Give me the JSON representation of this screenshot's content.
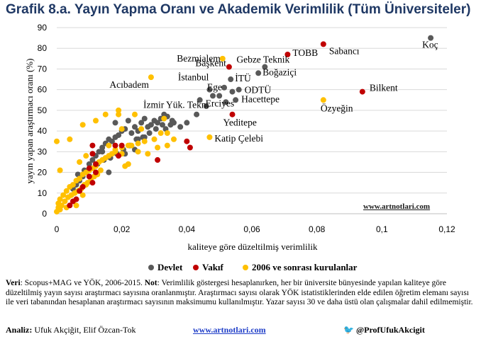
{
  "title": "Grafik 8.a. Yayın Yapma Oranı ve Akademik Verimlilik (Tüm Üniversiteler)",
  "website_label": "www.artnotlari.com",
  "notes": {
    "veri_label": "Veri",
    "veri_text": ": Scopus+MAG ve YÖK, 2006-2015.",
    "not_label": "Not",
    "not_text": ": Verimlilik göstergesi hesaplanırken, her bir üniversite bünyesinde yapılan kaliteye göre düzeltilmiş yayın sayısı araştırmacı sayısına oranlanmıştır. Araştırmacı sayısı olarak YÖK istatistiklerinden elde edilen öğretim elemanı sayısı ile veri tabanından hesaplanan araştırmacı sayısının maksimumu kullanılmıştır. Yazar sayısı 30 ve daha üstü olan çalışmalar dahil edilmemiştir."
  },
  "footer": {
    "analysis_label": "Analiz:",
    "analysis_names": "Ufuk Akçiğit, Elif Özcan-Tok",
    "site": "www.artnotlari.com",
    "twitter": "@ProfUfukAkcigit"
  },
  "colors": {
    "devlet": "#595959",
    "vakif": "#c00000",
    "yeni": "#ffc000",
    "title": "#1f3864"
  },
  "chart_data": {
    "type": "scatter",
    "xlabel": "kaliteye göre düzeltilmiş verimlilik",
    "ylabel": "yayın yapan araştırmacı oranı (%)",
    "xlim": [
      0,
      0.12
    ],
    "ylim": [
      0,
      90
    ],
    "xticks": [
      "0",
      "0,02",
      "0,04",
      "0,06",
      "0,08",
      "0,1",
      "0,12"
    ],
    "yticks": [
      "0",
      "10",
      "20",
      "30",
      "40",
      "50",
      "60",
      "70",
      "80",
      "90"
    ],
    "legend": [
      {
        "key": "devlet",
        "label": "Devlet"
      },
      {
        "key": "vakif",
        "label": "Vakıf"
      },
      {
        "key": "yeni",
        "label": "2006 ve sonrası kurulanlar"
      }
    ],
    "series": [
      {
        "name": "Devlet",
        "key": "devlet",
        "points": [
          [
            0.115,
            85
          ],
          [
            0.064,
            71
          ],
          [
            0.062,
            68
          ],
          [
            0.0535,
            65
          ],
          [
            0.0515,
            61
          ],
          [
            0.05,
            57
          ],
          [
            0.054,
            59
          ],
          [
            0.056,
            60
          ],
          [
            0.055,
            55
          ],
          [
            0.047,
            60
          ],
          [
            0.048,
            57
          ],
          [
            0.044,
            55
          ],
          [
            0.046,
            52
          ],
          [
            0.052,
            54
          ],
          [
            0.043,
            48
          ],
          [
            0.04,
            44
          ],
          [
            0.038,
            42
          ],
          [
            0.036,
            44
          ],
          [
            0.035,
            43
          ],
          [
            0.034,
            47
          ],
          [
            0.033,
            48
          ],
          [
            0.032,
            46
          ],
          [
            0.031,
            44
          ],
          [
            0.03,
            45
          ],
          [
            0.029,
            43
          ],
          [
            0.028,
            42
          ],
          [
            0.027,
            46
          ],
          [
            0.026,
            44
          ],
          [
            0.025,
            40
          ],
          [
            0.024,
            42
          ],
          [
            0.023,
            39
          ],
          [
            0.022,
            45
          ],
          [
            0.021,
            41
          ],
          [
            0.02,
            40
          ],
          [
            0.019,
            38
          ],
          [
            0.018,
            37
          ],
          [
            0.017,
            35
          ],
          [
            0.016,
            36
          ],
          [
            0.015,
            34
          ],
          [
            0.014,
            32
          ],
          [
            0.013,
            30
          ],
          [
            0.012,
            28
          ],
          [
            0.011,
            26
          ],
          [
            0.01,
            24
          ],
          [
            0.009,
            20
          ],
          [
            0.008,
            18
          ],
          [
            0.007,
            16
          ],
          [
            0.006,
            14
          ],
          [
            0.005,
            12
          ],
          [
            0.0335,
            41
          ],
          [
            0.0355,
            45
          ],
          [
            0.0325,
            43
          ],
          [
            0.0305,
            41
          ],
          [
            0.0285,
            39
          ],
          [
            0.0265,
            37
          ],
          [
            0.0245,
            36
          ],
          [
            0.0225,
            33
          ],
          [
            0.0205,
            31
          ],
          [
            0.0185,
            29
          ],
          [
            0.0165,
            27
          ],
          [
            0.0145,
            26
          ],
          [
            0.0125,
            24
          ],
          [
            0.0105,
            22
          ],
          [
            0.0085,
            21
          ],
          [
            0.0065,
            19
          ],
          [
            0.024,
            31
          ],
          [
            0.021,
            29
          ],
          [
            0.016,
            20
          ],
          [
            0.014,
            30
          ],
          [
            0.018,
            44
          ],
          [
            0.025,
            36
          ],
          [
            0.027,
            37
          ]
        ]
      },
      {
        "name": "Vakıf",
        "key": "vakif",
        "points": [
          [
            0.082,
            82
          ],
          [
            0.071,
            77
          ],
          [
            0.053,
            71
          ],
          [
            0.094,
            59
          ],
          [
            0.054,
            48
          ],
          [
            0.04,
            35
          ],
          [
            0.041,
            32
          ],
          [
            0.031,
            26
          ],
          [
            0.018,
            33
          ],
          [
            0.02,
            33
          ],
          [
            0.011,
            33
          ],
          [
            0.011,
            29
          ],
          [
            0.012,
            24
          ],
          [
            0.01,
            22
          ],
          [
            0.012,
            20
          ],
          [
            0.01,
            18
          ],
          [
            0.011,
            15
          ],
          [
            0.008,
            13
          ],
          [
            0.007,
            11
          ],
          [
            0.006,
            7
          ],
          [
            0.005,
            6
          ],
          [
            0.004,
            4
          ],
          [
            0.019,
            28
          ]
        ]
      },
      {
        "name": "2006 ve sonrası kurulanlar",
        "key": "yeni",
        "points": [
          [
            0.051,
            75
          ],
          [
            0.029,
            66
          ],
          [
            0.082,
            55
          ],
          [
            0.047,
            37
          ],
          [
            0.019,
            48
          ],
          [
            0.024,
            48
          ],
          [
            0.026,
            41
          ],
          [
            0.008,
            43
          ],
          [
            0.012,
            45
          ],
          [
            0.019,
            50
          ],
          [
            0.015,
            48
          ],
          [
            0.033,
            46
          ],
          [
            0.034,
            33
          ],
          [
            0.031,
            32
          ],
          [
            0.03,
            36
          ],
          [
            0.027,
            35
          ],
          [
            0.025,
            34
          ],
          [
            0.023,
            33
          ],
          [
            0.022,
            33
          ],
          [
            0.02,
            32
          ],
          [
            0.018,
            31
          ],
          [
            0.017,
            29
          ],
          [
            0.016,
            28
          ],
          [
            0.015,
            27
          ],
          [
            0.014,
            26
          ],
          [
            0.013,
            25
          ],
          [
            0.012,
            23
          ],
          [
            0.011,
            22
          ],
          [
            0.01,
            21
          ],
          [
            0.009,
            20
          ],
          [
            0.008,
            19
          ],
          [
            0.007,
            17
          ],
          [
            0.006,
            16
          ],
          [
            0.005,
            14
          ],
          [
            0.004,
            13
          ],
          [
            0.003,
            11
          ],
          [
            0.002,
            9
          ],
          [
            0.001,
            7
          ],
          [
            0.0005,
            3
          ],
          [
            0.0,
            35
          ],
          [
            0.001,
            21
          ],
          [
            0.004,
            36
          ],
          [
            0.0005,
            5
          ],
          [
            0.0015,
            4
          ],
          [
            0.0025,
            6
          ],
          [
            0.0035,
            8
          ],
          [
            0.0045,
            9
          ],
          [
            0.0055,
            10
          ],
          [
            0.0065,
            11
          ],
          [
            0.0075,
            12
          ],
          [
            0.0085,
            14
          ],
          [
            0.0095,
            15
          ],
          [
            0.0105,
            17
          ],
          [
            0.0115,
            18
          ],
          [
            0.0125,
            19
          ],
          [
            0.0135,
            21
          ],
          [
            0.02,
            29
          ],
          [
            0.021,
            23
          ],
          [
            0.022,
            24
          ],
          [
            0.018,
            30
          ],
          [
            0.016,
            33
          ],
          [
            0.02,
            41
          ],
          [
            0.034,
            39
          ],
          [
            0.036,
            36
          ],
          [
            0.032,
            39
          ],
          [
            0.025,
            30
          ],
          [
            0.028,
            29
          ],
          [
            0.009,
            28
          ],
          [
            0.007,
            25
          ],
          [
            0.009,
            14
          ],
          [
            0.006,
            4
          ],
          [
            0.003,
            3
          ],
          [
            0.0,
            1
          ],
          [
            0.001,
            2
          ],
          [
            0.008,
            9
          ]
        ]
      }
    ],
    "annotations": [
      {
        "text": "Koç",
        "x": 0.115,
        "y": 85,
        "ref": "devlet"
      },
      {
        "text": "Sabancı",
        "x": 0.082,
        "y": 82,
        "ref": "vakif"
      },
      {
        "text": "TOBB",
        "x": 0.071,
        "y": 77,
        "ref": "vakif"
      },
      {
        "text": "Bezmialem",
        "x": 0.051,
        "y": 75,
        "ref": "yeni"
      },
      {
        "text": "Gebze Teknik",
        "x": 0.064,
        "y": 71,
        "ref": "devlet"
      },
      {
        "text": "Başkent",
        "x": 0.053,
        "y": 71,
        "ref": "vakif"
      },
      {
        "text": "Boğaziçi",
        "x": 0.062,
        "y": 68,
        "ref": "devlet"
      },
      {
        "text": "Acıbadem",
        "x": 0.029,
        "y": 66,
        "ref": "yeni"
      },
      {
        "text": "İstanbul",
        "x": 0.047,
        "y": 60,
        "ref": "devlet"
      },
      {
        "text": "İTÜ",
        "x": 0.0535,
        "y": 65,
        "ref": "devlet"
      },
      {
        "text": "Ege",
        "x": 0.0515,
        "y": 61,
        "ref": "devlet"
      },
      {
        "text": "ODTÜ",
        "x": 0.056,
        "y": 60,
        "ref": "devlet"
      },
      {
        "text": "Bilkent",
        "x": 0.094,
        "y": 59,
        "ref": "vakif"
      },
      {
        "text": "Hacettepe",
        "x": 0.055,
        "y": 55,
        "ref": "devlet"
      },
      {
        "text": "İzmir Yük. Tekn.",
        "x": 0.048,
        "y": 57,
        "ref": "devlet"
      },
      {
        "text": "Erciyes",
        "x": 0.044,
        "y": 55,
        "ref": "devlet"
      },
      {
        "text": "Özyeğin",
        "x": 0.082,
        "y": 55,
        "ref": "yeni"
      },
      {
        "text": "Yeditepe",
        "x": 0.054,
        "y": 48,
        "ref": "vakif"
      },
      {
        "text": "Katip Çelebi",
        "x": 0.047,
        "y": 37,
        "ref": "yeni"
      }
    ]
  }
}
